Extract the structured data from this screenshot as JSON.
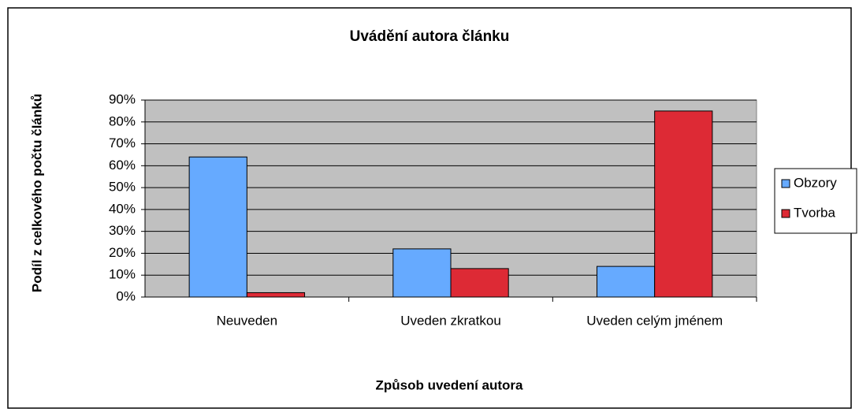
{
  "chart_data": {
    "type": "bar",
    "title": "Uvádění autora článku",
    "x_label": "Způsob uvedení autora",
    "y_label": "Podíl z celkového počtu článků",
    "categories": [
      "Neuveden",
      "Uveden zkratkou",
      "Uveden celým jménem"
    ],
    "series": [
      {
        "name": "Obzory",
        "color": "#66aaff",
        "values": [
          64,
          22,
          14
        ]
      },
      {
        "name": "Tvorba",
        "color": "#dd2a35",
        "values": [
          2,
          13,
          85
        ]
      }
    ],
    "ylim": [
      0,
      90
    ],
    "yticks": [
      {
        "value": 0,
        "label": "0%"
      },
      {
        "value": 10,
        "label": "10%"
      },
      {
        "value": 20,
        "label": "20%"
      },
      {
        "value": 30,
        "label": "30%"
      },
      {
        "value": 40,
        "label": "40%"
      },
      {
        "value": 50,
        "label": "50%"
      },
      {
        "value": 60,
        "label": "60%"
      },
      {
        "value": 70,
        "label": "70%"
      },
      {
        "value": 80,
        "label": "80%"
      },
      {
        "value": 90,
        "label": "90%"
      }
    ],
    "grid": true,
    "legend": "right"
  }
}
